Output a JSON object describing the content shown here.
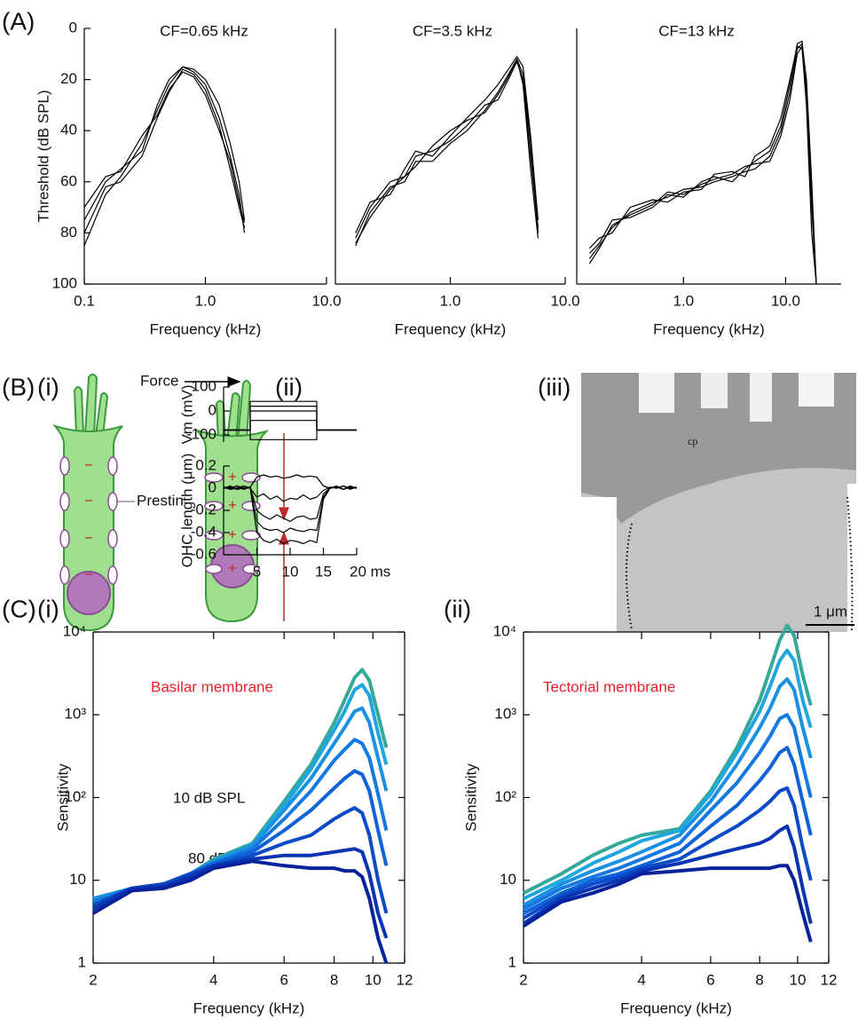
{
  "panel_labels": [
    "(A)",
    "(B)",
    "(i)",
    "(ii)",
    "(iii)",
    "(C)",
    "(i)",
    "(ii)"
  ],
  "diagram": {
    "force": "Force",
    "prestin": "Prestin",
    "minus": "−",
    "plus": "+"
  },
  "micrograph": {
    "region": "cp",
    "scale_bar": "1 μm"
  },
  "chart_data": [
    {
      "type": "line",
      "title": "CF=0.65 kHz",
      "xlabel": "Frequency (kHz)",
      "ylabel": "Threshold (dB SPL)",
      "xlog": true,
      "color": "#000000",
      "xlim": [
        0.1,
        10
      ],
      "xticks": [
        0.1,
        {
          "value": 1,
          "label": "1.0"
        },
        {
          "value": 10,
          "label": "10.0"
        }
      ],
      "ylim": [
        100,
        0
      ],
      "yticks": [
        0,
        20,
        40,
        60,
        80,
        100
      ],
      "x": [
        0.1,
        0.15,
        0.2,
        0.3,
        0.4,
        0.5,
        0.65,
        0.8,
        1.0,
        1.3,
        1.6,
        1.9,
        2.1
      ],
      "series": [
        {
          "values": [
            85,
            65,
            58,
            45,
            32,
            22,
            15,
            17,
            22,
            35,
            50,
            65,
            80
          ]
        },
        {
          "values": [
            80,
            62,
            60,
            50,
            35,
            25,
            16,
            18,
            24,
            38,
            55,
            70,
            78
          ]
        },
        {
          "values": [
            75,
            60,
            55,
            48,
            30,
            20,
            15,
            16,
            20,
            30,
            45,
            60,
            75
          ]
        },
        {
          "values": [
            70,
            58,
            56,
            42,
            34,
            24,
            17,
            19,
            26,
            40,
            52,
            68,
            76
          ]
        }
      ]
    },
    {
      "type": "line",
      "title": "CF=3.5 kHz",
      "xlabel": "Frequency (kHz)",
      "xlog": true,
      "color": "#000000",
      "xlim": [
        0.1,
        10
      ],
      "xticks": [
        {
          "value": 1,
          "label": "1.0"
        },
        {
          "value": 10,
          "label": "10.0"
        }
      ],
      "ylim": [
        100,
        0
      ],
      "x": [
        0.15,
        0.2,
        0.3,
        0.4,
        0.5,
        0.7,
        1.0,
        1.4,
        2.0,
        2.6,
        3.2,
        3.8,
        4.3,
        5.0,
        5.8
      ],
      "series": [
        {
          "values": [
            85,
            72,
            62,
            60,
            52,
            52,
            45,
            40,
            32,
            25,
            18,
            12,
            18,
            45,
            80
          ]
        },
        {
          "values": [
            82,
            70,
            60,
            58,
            50,
            48,
            44,
            38,
            30,
            28,
            20,
            13,
            20,
            50,
            78
          ]
        },
        {
          "values": [
            80,
            68,
            65,
            55,
            48,
            50,
            42,
            35,
            28,
            22,
            16,
            11,
            15,
            42,
            75
          ]
        },
        {
          "values": [
            84,
            74,
            63,
            58,
            54,
            46,
            40,
            36,
            33,
            26,
            19,
            12,
            22,
            55,
            82
          ]
        }
      ]
    },
    {
      "type": "line",
      "title": "CF=13 kHz",
      "xlabel": "Frequency (kHz)",
      "xlog": true,
      "color": "#000000",
      "xlim": [
        0.09,
        35
      ],
      "xticks": [
        {
          "value": 1,
          "label": "1.0"
        },
        {
          "value": 10,
          "label": "10.0"
        }
      ],
      "ylim": [
        100,
        0
      ],
      "x": [
        0.12,
        0.15,
        0.2,
        0.3,
        0.5,
        0.7,
        1.0,
        1.5,
        2.0,
        3,
        4,
        5,
        7,
        9,
        11,
        13,
        14.5,
        16,
        18,
        20
      ],
      "series": [
        {
          "values": [
            90,
            85,
            78,
            72,
            68,
            66,
            63,
            62,
            60,
            58,
            56,
            55,
            50,
            40,
            25,
            8,
            6,
            20,
            60,
            100
          ]
        },
        {
          "values": [
            88,
            84,
            75,
            74,
            70,
            65,
            66,
            60,
            58,
            60,
            55,
            52,
            48,
            38,
            22,
            6,
            5,
            25,
            70,
            100
          ]
        },
        {
          "values": [
            86,
            82,
            80,
            70,
            67,
            68,
            64,
            63,
            57,
            56,
            58,
            50,
            46,
            35,
            20,
            7,
            8,
            30,
            80,
            100
          ]
        },
        {
          "values": [
            92,
            86,
            77,
            73,
            69,
            64,
            65,
            61,
            59,
            57,
            54,
            53,
            52,
            42,
            28,
            10,
            7,
            22,
            65,
            100
          ]
        }
      ]
    },
    {
      "type": "line",
      "ylabel": "Vm (mV)",
      "color": "#000000",
      "xlim": [
        0,
        20
      ],
      "ylim": [
        -130,
        100
      ],
      "yticks": [
        -100,
        0,
        100
      ],
      "x": [
        0,
        4,
        4,
        14,
        14,
        20
      ],
      "series": [
        {
          "values": [
            -80,
            -80,
            -120,
            -120,
            -80,
            -80
          ]
        },
        {
          "values": [
            -80,
            -80,
            -40,
            -40,
            -80,
            -80
          ]
        },
        {
          "values": [
            -80,
            -80,
            0,
            0,
            -80,
            -80
          ]
        },
        {
          "values": [
            -80,
            -80,
            20,
            20,
            -80,
            -80
          ]
        },
        {
          "values": [
            -80,
            -80,
            40,
            40,
            -80,
            -80
          ]
        }
      ]
    },
    {
      "type": "line",
      "ylabel": "OHC length (μm)",
      "color": "#000000",
      "xlim": [
        0,
        20
      ],
      "xticks": [
        5,
        10,
        15,
        {
          "value": 20,
          "label": "20 ms"
        }
      ],
      "ylim": [
        -0.6,
        0.2
      ],
      "yticks": [
        0.2,
        0,
        -0.2,
        -0.4,
        -0.6
      ],
      "x": [
        0,
        1,
        2,
        3,
        4,
        5,
        6,
        7,
        8,
        9,
        10,
        11,
        12,
        13,
        14,
        15,
        16,
        17,
        18,
        19,
        20
      ],
      "series": [
        {
          "values": [
            0.01,
            -0.01,
            0.02,
            0,
            0.01,
            0.1,
            0.12,
            0.1,
            0.11,
            0.09,
            0.1,
            0.12,
            0.1,
            0.11,
            0.1,
            0.02,
            0,
            0.01,
            -0.01,
            0.02,
            0
          ]
        },
        {
          "values": [
            0,
            0.01,
            -0.01,
            0.02,
            0,
            -0.08,
            -0.05,
            -0.1,
            -0.07,
            -0.12,
            -0.09,
            -0.1,
            -0.06,
            -0.1,
            -0.08,
            -0.02,
            0.01,
            0,
            0.02,
            -0.01,
            0.01
          ]
        },
        {
          "values": [
            0.01,
            0,
            0.02,
            -0.01,
            0.01,
            -0.2,
            -0.25,
            -0.28,
            -0.24,
            -0.27,
            -0.3,
            -0.26,
            -0.25,
            -0.28,
            -0.27,
            -0.05,
            0,
            0.01,
            -0.01,
            0.01,
            0
          ]
        },
        {
          "values": [
            0,
            0.02,
            -0.01,
            0,
            0.01,
            -0.3,
            -0.36,
            -0.38,
            -0.37,
            -0.4,
            -0.36,
            -0.38,
            -0.39,
            -0.37,
            -0.38,
            -0.08,
            0.01,
            0,
            0.02,
            0,
            0.01
          ]
        },
        {
          "values": [
            0.01,
            -0.01,
            0,
            0.02,
            0,
            -0.4,
            -0.47,
            -0.49,
            -0.46,
            -0.5,
            -0.47,
            -0.48,
            -0.5,
            -0.47,
            -0.49,
            -0.1,
            0,
            0.02,
            -0.01,
            0.01,
            0
          ]
        }
      ]
    },
    {
      "type": "line",
      "xlabel": "Frequency (kHz)",
      "ylabel": "Sensitivity",
      "xlog": true,
      "ylog": true,
      "xlim": [
        2,
        12
      ],
      "xticks": [
        2,
        4,
        6,
        8,
        10,
        12
      ],
      "ylim": [
        1,
        10000
      ],
      "yticks": [
        1,
        10,
        {
          "value": 100,
          "label": "10²"
        },
        {
          "value": 1000,
          "label": "10³"
        },
        {
          "value": 10000,
          "label": "10⁴"
        }
      ],
      "annotations": [
        "Basilar membrane",
        "10 dB SPL",
        "80 dB SPL"
      ],
      "x": [
        2,
        2.5,
        3,
        3.5,
        4,
        5,
        6,
        7,
        8,
        8.5,
        9,
        9.4,
        9.8,
        10.3,
        10.8
      ],
      "series": [
        {
          "color": "#35a89a",
          "values": [
            6,
            8,
            9,
            12,
            18,
            28,
            90,
            250,
            800,
            1500,
            2800,
            3500,
            2600,
            1000,
            400
          ]
        },
        {
          "color": "#1fa6de",
          "values": [
            6,
            8,
            9,
            12,
            17,
            27,
            80,
            220,
            650,
            1100,
            2000,
            2300,
            1700,
            600,
            250
          ]
        },
        {
          "color": "#1990e2",
          "values": [
            6,
            8,
            9,
            12,
            17,
            26,
            70,
            170,
            450,
            700,
            1100,
            1200,
            800,
            300,
            120
          ]
        },
        {
          "color": "#1479e0",
          "values": [
            5.5,
            8,
            9,
            12,
            16,
            24,
            55,
            120,
            280,
            380,
            500,
            450,
            300,
            110,
            40
          ]
        },
        {
          "color": "#1062d8",
          "values": [
            5,
            8,
            9,
            12,
            16,
            22,
            40,
            70,
            130,
            170,
            210,
            190,
            120,
            40,
            15
          ]
        },
        {
          "color": "#0c4bc8",
          "values": [
            5,
            8,
            9,
            12,
            15,
            20,
            28,
            35,
            55,
            65,
            75,
            65,
            35,
            10,
            4
          ]
        },
        {
          "color": "#0a34b2",
          "values": [
            4.5,
            8,
            8.5,
            11,
            15,
            18,
            20,
            20,
            22,
            23,
            24,
            22,
            12,
            4,
            2
          ]
        },
        {
          "color": "#08229c",
          "values": [
            4,
            7.5,
            8,
            10,
            14,
            17,
            15,
            14,
            14,
            13,
            13,
            11,
            6,
            2,
            1
          ]
        }
      ]
    },
    {
      "type": "line",
      "xlabel": "Frequency (kHz)",
      "ylabel": "Sensitivity",
      "xlog": true,
      "ylog": true,
      "xlim": [
        2,
        12
      ],
      "xticks": [
        2,
        4,
        6,
        8,
        10,
        12
      ],
      "ylim": [
        1,
        10000
      ],
      "yticks": [
        1,
        10,
        {
          "value": 100,
          "label": "10²"
        },
        {
          "value": 1000,
          "label": "10³"
        },
        {
          "value": 10000,
          "label": "10⁴"
        }
      ],
      "annotations": [
        "Tectorial membrane"
      ],
      "x": [
        2,
        2.5,
        3,
        3.5,
        4,
        5,
        6,
        7,
        8,
        8.5,
        9,
        9.4,
        9.8,
        10.3,
        10.8
      ],
      "series": [
        {
          "color": "#35a89a",
          "values": [
            7,
            12,
            20,
            28,
            35,
            42,
            120,
            400,
            1500,
            3500,
            8000,
            12000,
            9000,
            3000,
            1300
          ]
        },
        {
          "color": "#1fa6de",
          "values": [
            6,
            10,
            16,
            22,
            30,
            40,
            110,
            350,
            1100,
            2200,
            4500,
            6000,
            4500,
            1500,
            700
          ]
        },
        {
          "color": "#1990e2",
          "values": [
            5,
            9,
            13,
            17,
            22,
            35,
            90,
            250,
            700,
            1200,
            2200,
            2700,
            2000,
            700,
            300
          ]
        },
        {
          "color": "#1479e0",
          "values": [
            4.5,
            8,
            11,
            14,
            18,
            28,
            70,
            150,
            350,
            550,
            900,
            1000,
            700,
            250,
            100
          ]
        },
        {
          "color": "#1062d8",
          "values": [
            4,
            7,
            10,
            12,
            15,
            22,
            45,
            80,
            160,
            230,
            350,
            400,
            250,
            90,
            35
          ]
        },
        {
          "color": "#0c4bc8",
          "values": [
            3.5,
            6.5,
            9,
            11,
            14,
            18,
            30,
            45,
            70,
            90,
            120,
            130,
            80,
            25,
            10
          ]
        },
        {
          "color": "#0a34b2",
          "values": [
            3,
            6,
            8,
            10,
            13,
            16,
            20,
            24,
            28,
            32,
            40,
            45,
            25,
            8,
            3
          ]
        },
        {
          "color": "#08229c",
          "values": [
            2.8,
            5.5,
            7,
            9,
            12,
            13,
            14,
            14,
            14,
            14,
            15,
            15,
            10,
            4,
            1.8
          ]
        }
      ]
    }
  ]
}
